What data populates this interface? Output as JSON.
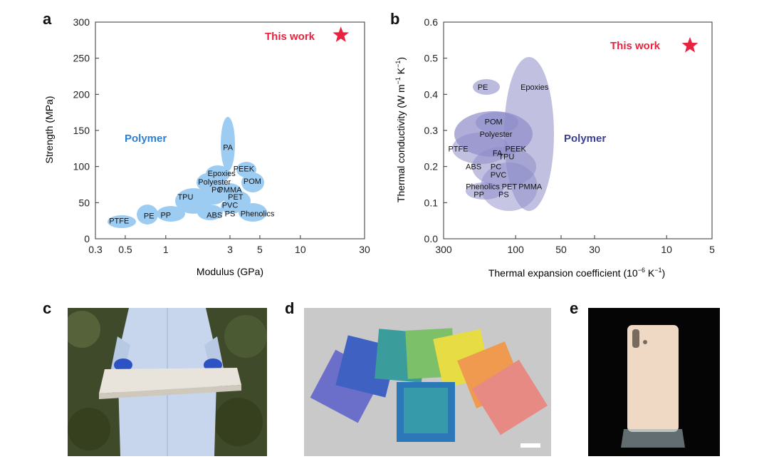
{
  "panel_labels": {
    "a": "a",
    "b": "b",
    "c": "c",
    "d": "d",
    "e": "e"
  },
  "chart_data": [
    {
      "id": "a",
      "type": "scatter",
      "xlabel": "Modulus (GPa)",
      "ylabel": "Strength (MPa)",
      "x_scale": "log",
      "xlim": [
        0.3,
        30
      ],
      "ylim": [
        0,
        300
      ],
      "x_ticks": [
        0.3,
        0.5,
        1,
        3,
        5,
        10,
        30
      ],
      "x_tick_labels": [
        "0.3",
        "0.5",
        "1",
        "3",
        "5",
        "10",
        "30"
      ],
      "y_ticks": [
        0,
        50,
        100,
        150,
        200,
        250,
        300
      ],
      "y_tick_labels": [
        "0",
        "50",
        "100",
        "150",
        "200",
        "250",
        "300"
      ],
      "group_label": "Polymer",
      "highlight": {
        "label": "This work",
        "x": 20,
        "y": 282
      },
      "materials": [
        {
          "name": "PTFE",
          "x": 0.45,
          "y": 25
        },
        {
          "name": "PE",
          "x": 0.75,
          "y": 32
        },
        {
          "name": "PP",
          "x": 1.0,
          "y": 33
        },
        {
          "name": "ABS",
          "x": 2.3,
          "y": 33
        },
        {
          "name": "PS",
          "x": 3.0,
          "y": 35
        },
        {
          "name": "Phenolics",
          "x": 4.8,
          "y": 35
        },
        {
          "name": "TPU",
          "x": 1.4,
          "y": 58
        },
        {
          "name": "PC",
          "x": 2.4,
          "y": 68
        },
        {
          "name": "PMMA",
          "x": 3.0,
          "y": 68
        },
        {
          "name": "PET",
          "x": 3.3,
          "y": 58
        },
        {
          "name": "PVC",
          "x": 3.0,
          "y": 47
        },
        {
          "name": "Polyester",
          "x": 2.3,
          "y": 79
        },
        {
          "name": "Epoxies",
          "x": 2.6,
          "y": 91
        },
        {
          "name": "PEEK",
          "x": 3.8,
          "y": 97
        },
        {
          "name": "POM",
          "x": 4.4,
          "y": 80
        },
        {
          "name": "PA",
          "x": 2.9,
          "y": 127
        }
      ]
    },
    {
      "id": "b",
      "type": "scatter",
      "xlabel": "Thermal expansion coefficient (10",
      "xlabel_sup": "−6",
      "xlabel_unit": " K",
      "xlabel_unit_sup": "−1",
      "xlabel_close": ")",
      "ylabel": "Thermal conductivity (W m",
      "ylabel_sup1": "−1",
      "ylabel_unit": " K",
      "ylabel_sup2": "−1",
      "ylabel_close": ")",
      "x_scale": "log-reversed",
      "xlim": [
        300,
        5
      ],
      "ylim": [
        0,
        0.6
      ],
      "x_ticks": [
        300,
        100,
        50,
        30,
        10,
        5
      ],
      "x_tick_labels": [
        "300",
        "100",
        "50",
        "30",
        "10",
        "5"
      ],
      "y_ticks": [
        0.0,
        0.1,
        0.2,
        0.3,
        0.4,
        0.5,
        0.6
      ],
      "y_tick_labels": [
        "0.0",
        "0.1",
        "0.2",
        "0.3",
        "0.4",
        "0.5",
        "0.6"
      ],
      "group_label": "Polymer",
      "highlight": {
        "label": "This work",
        "x": 7,
        "y": 0.535
      },
      "materials": [
        {
          "name": "PE",
          "x": 165,
          "y": 0.42
        },
        {
          "name": "Epoxies",
          "x": 75,
          "y": 0.42
        },
        {
          "name": "POM",
          "x": 140,
          "y": 0.325
        },
        {
          "name": "Polyester",
          "x": 135,
          "y": 0.29
        },
        {
          "name": "PTFE",
          "x": 240,
          "y": 0.25
        },
        {
          "name": "FA",
          "x": 132,
          "y": 0.238
        },
        {
          "name": "PEEK",
          "x": 100,
          "y": 0.25
        },
        {
          "name": "TPU",
          "x": 115,
          "y": 0.228
        },
        {
          "name": "ABS",
          "x": 190,
          "y": 0.2
        },
        {
          "name": "PC",
          "x": 135,
          "y": 0.2
        },
        {
          "name": "PVC",
          "x": 130,
          "y": 0.178
        },
        {
          "name": "Phenolics",
          "x": 165,
          "y": 0.145
        },
        {
          "name": "PET",
          "x": 110,
          "y": 0.145
        },
        {
          "name": "PMMA",
          "x": 80,
          "y": 0.145
        },
        {
          "name": "PP",
          "x": 175,
          "y": 0.123
        },
        {
          "name": "PS",
          "x": 120,
          "y": 0.123
        }
      ]
    }
  ],
  "colors": {
    "star": "#e8223f",
    "group_a": "#2c7fd3",
    "bubble_a": "#8dc4f2",
    "group_b": "#3c3f8f",
    "bubble_b": "#8e8cc9"
  },
  "photos": {
    "c": {
      "background": "#3f4a2a",
      "panel": "#e9e4db",
      "coat": "#c7d6ec",
      "gloves": "#2c52c4"
    },
    "d": {
      "background": "#c9c9c9",
      "tiles": [
        "#6b6fc9",
        "#3f62c2",
        "#3b9d9b",
        "#7cc06a",
        "#e7dc43",
        "#ef9a4f",
        "#e88a84",
        "#2c77b8"
      ]
    },
    "e": {
      "background": "#050505",
      "phone": "#efd8c4"
    }
  }
}
